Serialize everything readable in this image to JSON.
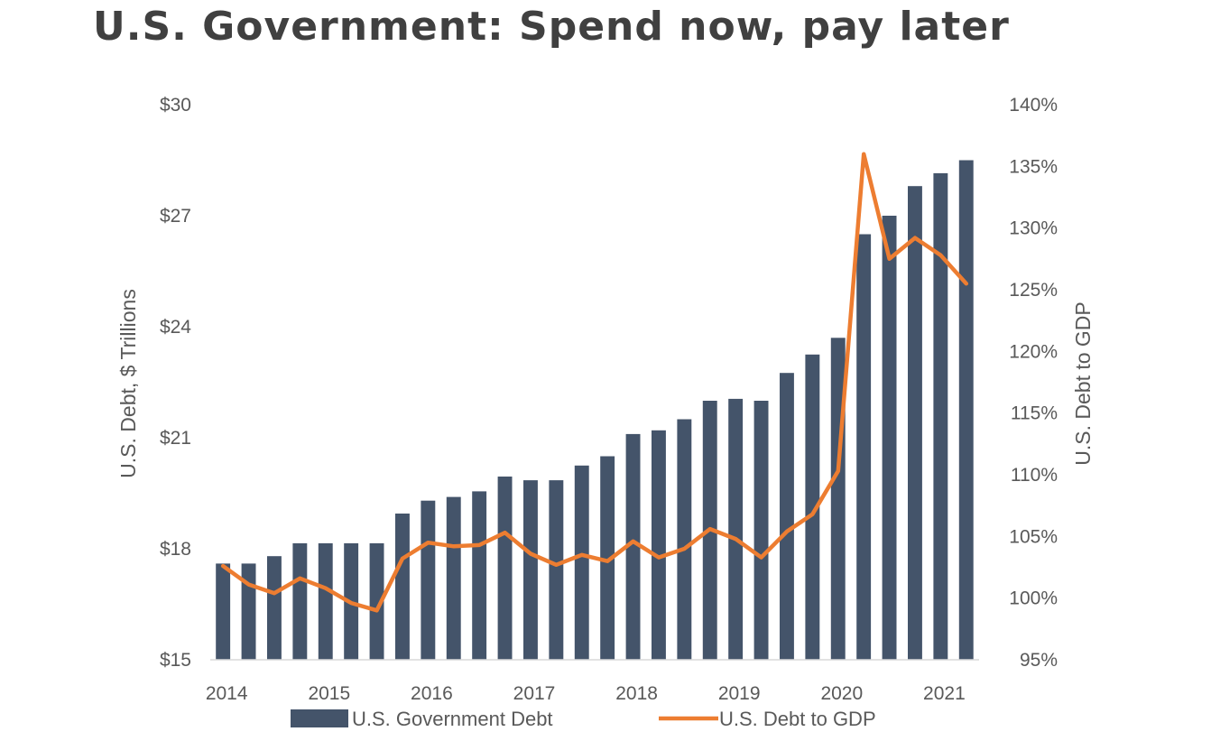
{
  "title": "U.S. Government: Spend now, pay later",
  "chart_data": {
    "type": "bar",
    "x_tick_labels": [
      "2014",
      "2015",
      "2016",
      "2017",
      "2018",
      "2019",
      "2020",
      "2021"
    ],
    "y_left": {
      "label": "U.S. Debt, $ Trillions",
      "range": [
        15,
        30
      ],
      "ticks": [
        15,
        18,
        21,
        24,
        27,
        30
      ],
      "tick_labels": [
        "$15",
        "$18",
        "$21",
        "$24",
        "$27",
        "$30"
      ]
    },
    "y_right": {
      "label": "U.S. Debt to GDP",
      "range": [
        95,
        140
      ],
      "ticks": [
        95,
        100,
        105,
        110,
        115,
        120,
        125,
        130,
        135,
        140
      ],
      "tick_labels": [
        "95%",
        "100%",
        "105%",
        "110%",
        "115%",
        "120%",
        "125%",
        "130%",
        "135%",
        "140%"
      ]
    },
    "series": [
      {
        "name": "U.S. Government Debt",
        "type": "bar",
        "axis": "left",
        "color": "#44546a",
        "values": [
          17.6,
          17.6,
          17.8,
          18.15,
          18.15,
          18.15,
          18.15,
          18.95,
          19.3,
          19.4,
          19.55,
          19.95,
          19.85,
          19.85,
          20.25,
          20.5,
          21.1,
          21.2,
          21.5,
          22.0,
          22.05,
          22.0,
          22.75,
          23.25,
          23.7,
          26.5,
          27.0,
          27.8,
          28.15,
          28.5
        ]
      },
      {
        "name": "U.S. Debt to GDP",
        "type": "line",
        "axis": "right",
        "color": "#ed7d31",
        "values": [
          102.6,
          101.1,
          100.4,
          101.6,
          100.8,
          99.6,
          99.0,
          103.2,
          104.5,
          104.2,
          104.3,
          105.3,
          103.6,
          102.7,
          103.5,
          103.0,
          104.6,
          103.3,
          104.0,
          105.6,
          104.8,
          103.3,
          105.4,
          106.8,
          110.3,
          136.0,
          127.5,
          129.2,
          127.8,
          125.5
        ]
      }
    ],
    "legend_position": "bottom",
    "grid": false
  }
}
